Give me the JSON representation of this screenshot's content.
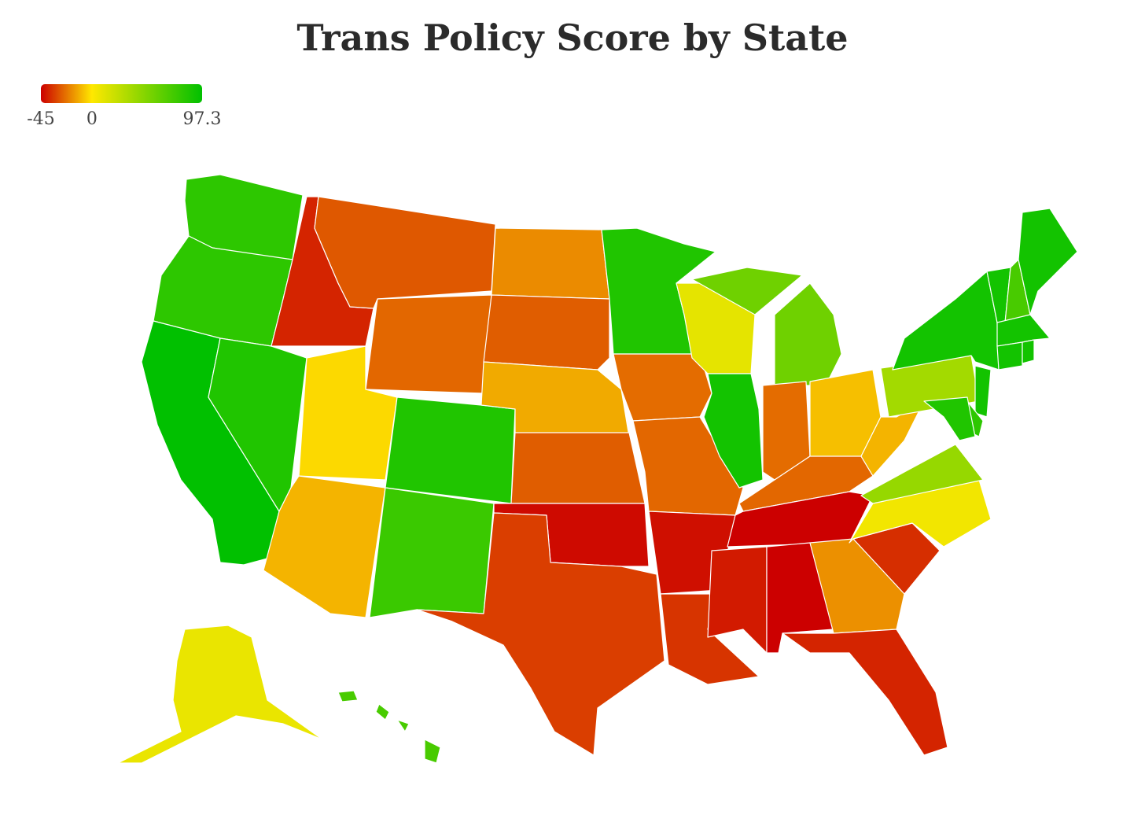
{
  "chart_data": {
    "type": "choropleth",
    "title": "Trans Policy Score by State",
    "legend_ticks": [
      -45,
      0,
      97.3
    ],
    "legend_colors": [
      "#cc0000",
      "#ffe800",
      "#00c000"
    ],
    "values": [
      80,
      80,
      97,
      85,
      -38,
      -28,
      -25,
      -3,
      85,
      -10,
      75,
      -18,
      -27,
      -12,
      -27,
      -43,
      -33,
      85,
      -24,
      -25,
      -42,
      -35,
      10,
      90,
      55,
      -24,
      -8,
      -25,
      -45,
      -40,
      -45,
      -17,
      -38,
      -36,
      5,
      40,
      -10,
      35,
      90,
      90,
      70,
      90,
      90,
      90,
      90,
      90,
      80,
      85,
      8,
      70
    ]
  }
}
